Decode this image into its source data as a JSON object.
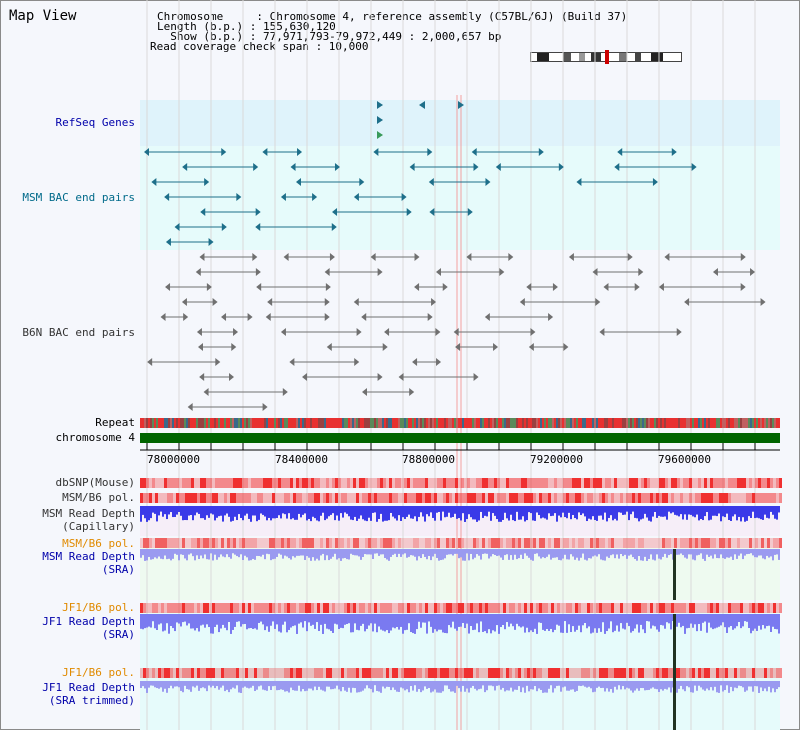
{
  "title": "Map View",
  "header": {
    "line1": "Chromosome     : Chromosome 4, reference assembly (C57BL/6J) (Build 37)",
    "line2": "Length (b.p.) : 155,630,120",
    "line3": "  Show (b.p.) : 77,971,793-79,972,449 : 2,000,657 bp",
    "line4": "Read coverage check span : 10,000"
  },
  "labels": {
    "refseq": "RefSeq Genes",
    "msm_bac": "MSM BAC end pairs",
    "b6n_bac": "B6N BAC end pairs",
    "repeat": "Repeat",
    "chrom": "chromosome 4",
    "dbsnp": "dbSNP(Mouse)",
    "msm_b6_pol": "MSM/B6 pol.",
    "msm_depth_cap": "MSM Read Depth\n(Capillary)",
    "msm_b6_pol2": "MSM/B6 pol.",
    "msm_depth_sra": "MSM Read Depth\n(SRA)",
    "jf1_pol": "JF1/B6 pol.",
    "jf1_depth_sra": "JF1 Read Depth\n(SRA)",
    "jf1_pol2": "JF1/B6 pol.",
    "jf1_depth_trim": "JF1 Read Depth\n(SRA trimmed)"
  },
  "axis_ticks": [
    "78000000",
    "78400000",
    "78800000",
    "79200000",
    "79600000"
  ],
  "colors": {
    "refseq_bg": "#dff3fb",
    "msm_bac_bg": "#e6fbfb",
    "chrom_bar": "#006400",
    "msm_glyph": "#1e6f8a",
    "b6n_glyph": "#707070",
    "snp_red": "#f03030",
    "depth_blue": "#3a3ae8",
    "depth_light": "#9a9af0"
  }
}
